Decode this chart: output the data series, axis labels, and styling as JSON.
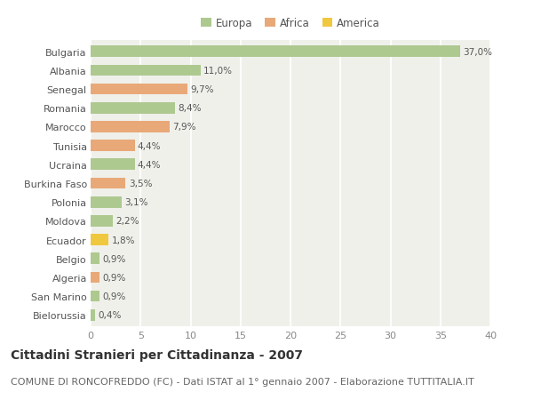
{
  "countries": [
    "Bulgaria",
    "Albania",
    "Senegal",
    "Romania",
    "Marocco",
    "Tunisia",
    "Ucraina",
    "Burkina Faso",
    "Polonia",
    "Moldova",
    "Ecuador",
    "Belgio",
    "Algeria",
    "San Marino",
    "Bielorussia"
  ],
  "values": [
    37.0,
    11.0,
    9.7,
    8.4,
    7.9,
    4.4,
    4.4,
    3.5,
    3.1,
    2.2,
    1.8,
    0.9,
    0.9,
    0.9,
    0.4
  ],
  "labels": [
    "37,0%",
    "11,0%",
    "9,7%",
    "8,4%",
    "7,9%",
    "4,4%",
    "4,4%",
    "3,5%",
    "3,1%",
    "2,2%",
    "1,8%",
    "0,9%",
    "0,9%",
    "0,9%",
    "0,4%"
  ],
  "continents": [
    "Europa",
    "Europa",
    "Africa",
    "Europa",
    "Africa",
    "Africa",
    "Europa",
    "Africa",
    "Europa",
    "Europa",
    "America",
    "Europa",
    "Africa",
    "Europa",
    "Europa"
  ],
  "colors": {
    "Europa": "#adc990",
    "Africa": "#e8a878",
    "America": "#f0c840"
  },
  "background_color": "#ffffff",
  "plot_bg_color": "#f0f0eb",
  "grid_color": "#ffffff",
  "title": "Cittadini Stranieri per Cittadinanza - 2007",
  "subtitle": "COMUNE DI RONCOFREDDO (FC) - Dati ISTAT al 1° gennaio 2007 - Elaborazione TUTTITALIA.IT",
  "xlim": [
    0,
    40
  ],
  "xticks": [
    0,
    5,
    10,
    15,
    20,
    25,
    30,
    35,
    40
  ],
  "title_fontsize": 10,
  "subtitle_fontsize": 8,
  "label_fontsize": 7.5,
  "ytick_fontsize": 8,
  "xtick_fontsize": 8
}
